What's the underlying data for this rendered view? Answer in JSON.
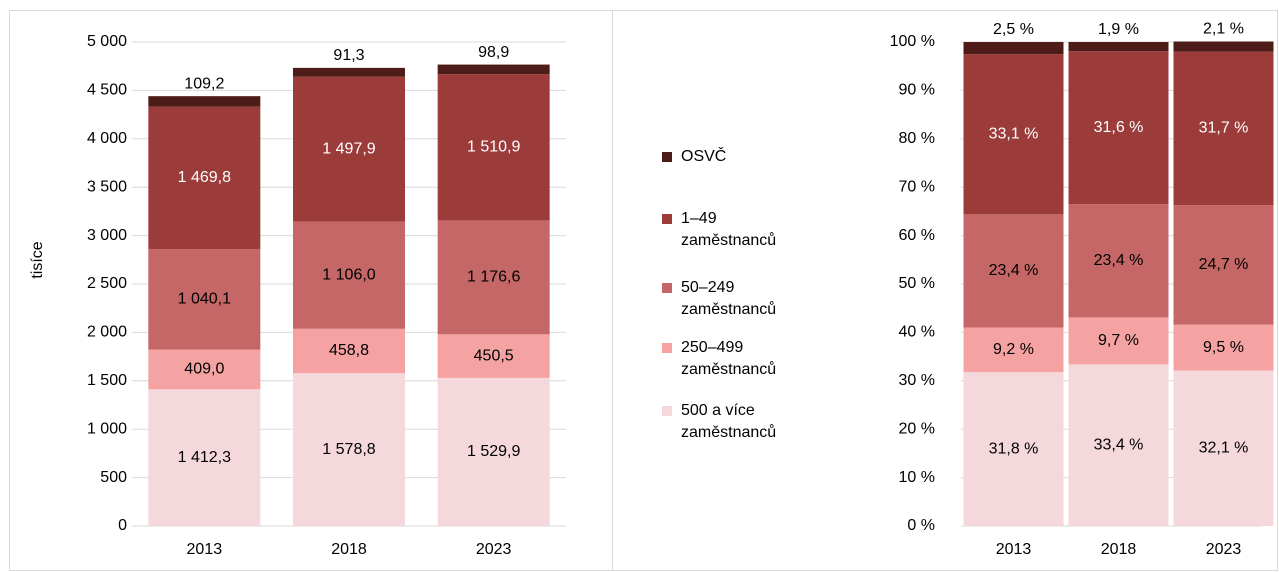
{
  "chart_data": [
    {
      "type": "stacked_bar",
      "y_label": "tisíce",
      "categories": [
        "2013",
        "2018",
        "2023"
      ],
      "ylim": [
        0,
        5000
      ],
      "yticks": [
        0,
        500,
        {
          "value": 1000,
          "label": "1 000"
        },
        {
          "value": 1500,
          "label": "1 500"
        },
        {
          "value": 2000,
          "label": "2 000"
        },
        {
          "value": 2500,
          "label": "2 500"
        },
        {
          "value": 3000,
          "label": "3 000"
        },
        {
          "value": 3500,
          "label": "3 500"
        },
        {
          "value": 4000,
          "label": "4 000"
        },
        {
          "value": 4500,
          "label": "4 500"
        },
        {
          "value": 5000,
          "label": "5 000"
        }
      ],
      "grid": true,
      "series": [
        {
          "name": "500 a více zaměstnanců",
          "color": "#f5d8db",
          "label_color": "#000000",
          "values": [
            1412.3,
            1578.8,
            1529.9
          ],
          "value_labels": [
            "1 412,3",
            "1 578,8",
            "1 529,9"
          ]
        },
        {
          "name": "250–499 zaměstnanců",
          "color": "#f4a3a2",
          "label_color": "#000000",
          "values": [
            409.0,
            458.8,
            450.5
          ],
          "value_labels": [
            "409,0",
            "458,8",
            "450,5"
          ]
        },
        {
          "name": "50–249 zaměstnanců",
          "color": "#c46766",
          "label_color": "#000000",
          "values": [
            1040.1,
            1106.0,
            1176.6
          ],
          "value_labels": [
            "1 040,1",
            "1 106,0",
            "1 176,6"
          ]
        },
        {
          "name": "1–49 zaměstnanců",
          "color": "#9c3c3a",
          "label_color": "#ffffff",
          "values": [
            1469.8,
            1497.9,
            1510.9
          ],
          "value_labels": [
            "1 469,8",
            "1 497,9",
            "1 510,9"
          ]
        },
        {
          "name": "OSVČ",
          "color": "#4e1c18",
          "label_color": "#000000",
          "label_position": "above",
          "values": [
            109.2,
            91.3,
            98.9
          ],
          "value_labels": [
            "109,2",
            "91,3",
            "98,9"
          ]
        }
      ]
    },
    {
      "type": "stacked_bar",
      "categories": [
        "2013",
        "2018",
        "2023"
      ],
      "ylim": [
        0,
        100
      ],
      "yticks": [
        {
          "value": 0,
          "label": "0 %"
        },
        {
          "value": 10,
          "label": "10 %"
        },
        {
          "value": 20,
          "label": "20 %"
        },
        {
          "value": 30,
          "label": "30 %"
        },
        {
          "value": 40,
          "label": "40 %"
        },
        {
          "value": 50,
          "label": "50 %"
        },
        {
          "value": 60,
          "label": "60 %"
        },
        {
          "value": 70,
          "label": "70 %"
        },
        {
          "value": 80,
          "label": "80 %"
        },
        {
          "value": 90,
          "label": "90 %"
        },
        {
          "value": 100,
          "label": "100 %"
        }
      ],
      "grid": true,
      "series": [
        {
          "color": "#f5d8db",
          "label_color": "#000000",
          "values": [
            31.8,
            33.4,
            32.1
          ],
          "value_labels": [
            "31,8 %",
            "33,4 %",
            "32,1 %"
          ]
        },
        {
          "color": "#f4a3a2",
          "label_color": "#000000",
          "values": [
            9.2,
            9.7,
            9.5
          ],
          "value_labels": [
            "9,2 %",
            "9,7 %",
            "9,5 %"
          ]
        },
        {
          "color": "#c46766",
          "label_color": "#000000",
          "values": [
            23.4,
            23.4,
            24.7
          ],
          "value_labels": [
            "23,4 %",
            "23,4 %",
            "24,7 %"
          ]
        },
        {
          "color": "#9c3c3a",
          "label_color": "#ffffff",
          "values": [
            33.1,
            31.6,
            31.7
          ],
          "value_labels": [
            "33,1 %",
            "31,6 %",
            "31,7 %"
          ]
        },
        {
          "color": "#4e1c18",
          "label_color": "#000000",
          "label_position": "above",
          "values": [
            2.5,
            1.9,
            2.1
          ],
          "value_labels": [
            "2,5 %",
            "1,9 %",
            "2,1 %"
          ]
        }
      ]
    }
  ]
}
